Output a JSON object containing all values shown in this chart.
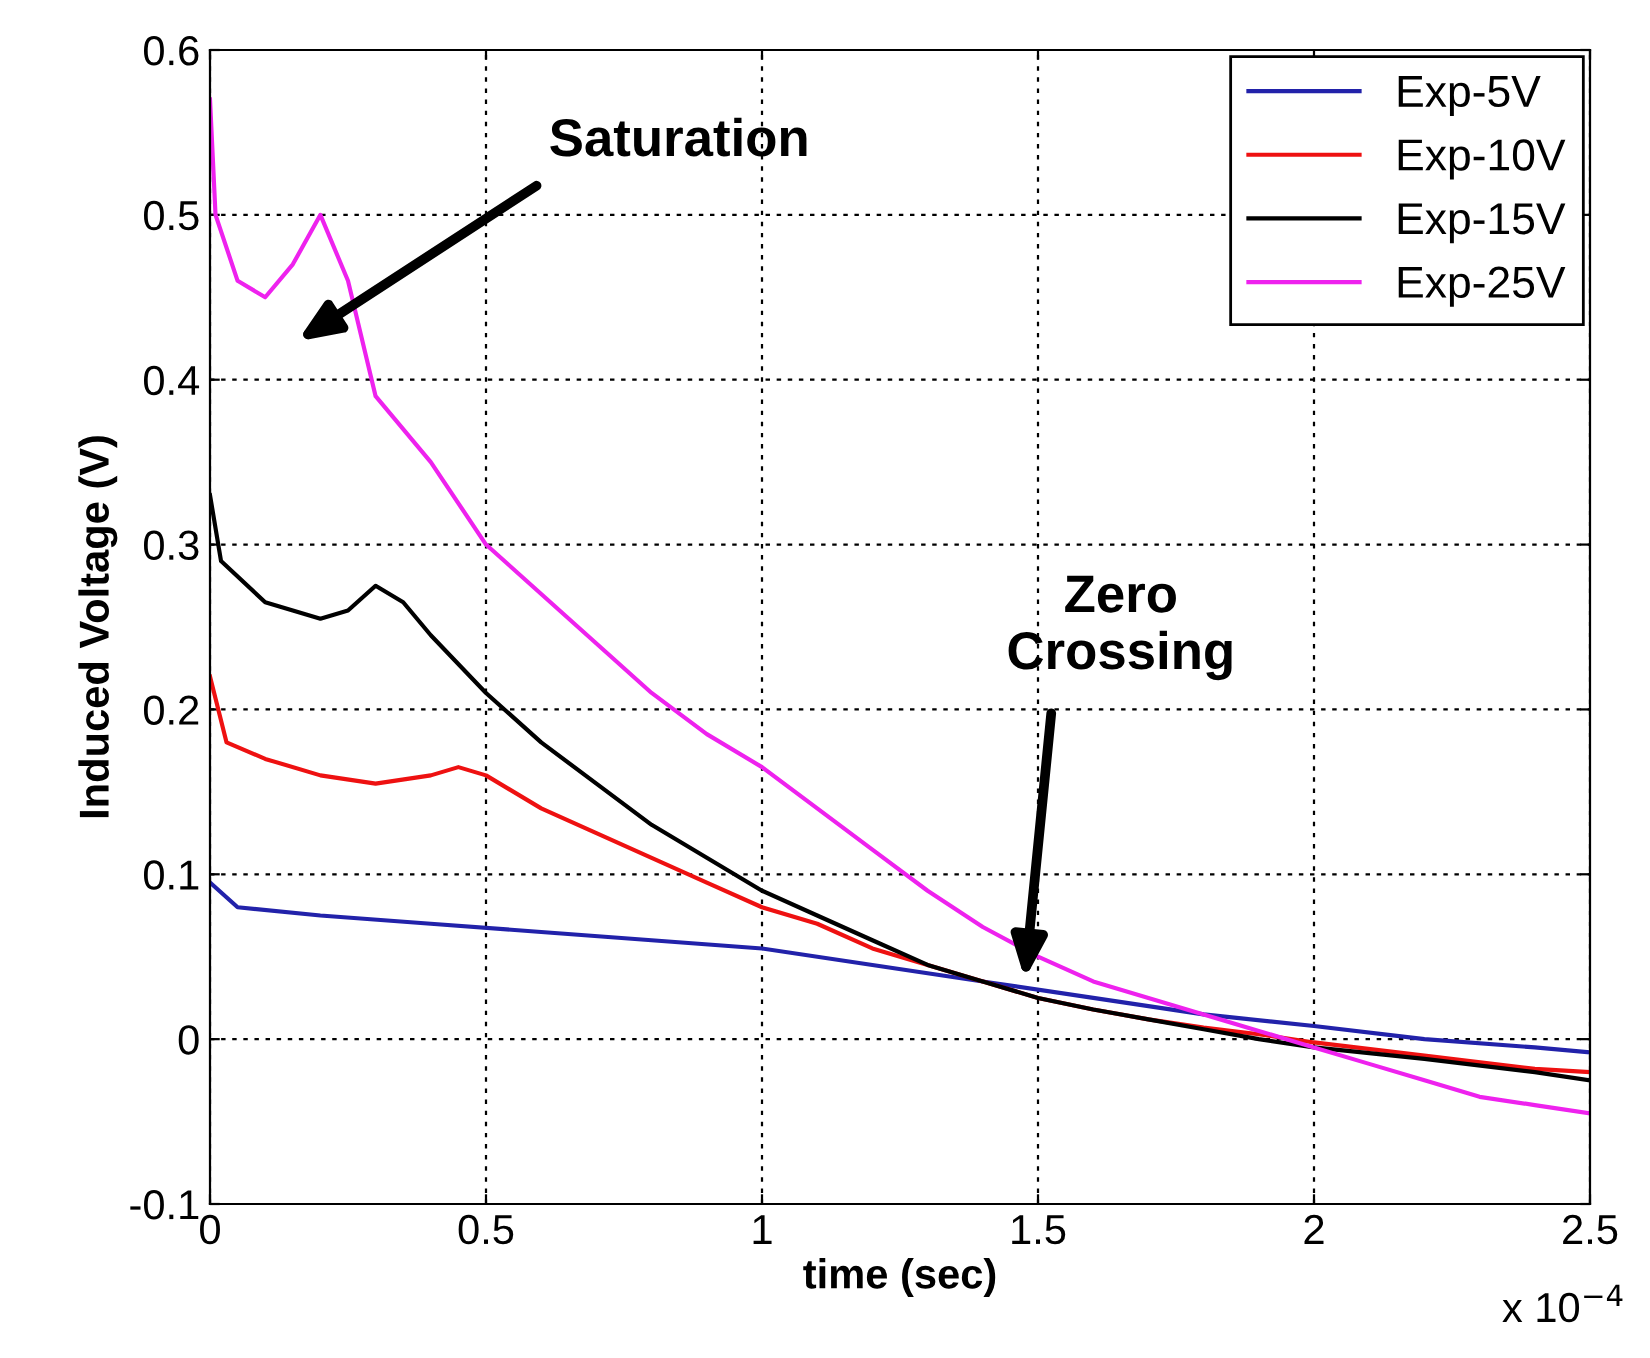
{
  "chart_data": {
    "type": "line",
    "xlabel": "time (sec)",
    "ylabel": "Induced Voltage (V)",
    "xlim": [
      0,
      2.5
    ],
    "ylim": [
      -0.1,
      0.6
    ],
    "xticks": [
      0,
      0.5,
      1,
      1.5,
      2,
      2.5
    ],
    "yticks": [
      -0.1,
      0,
      0.1,
      0.2,
      0.3,
      0.4,
      0.5,
      0.6
    ],
    "grid": true,
    "legend": "top right",
    "line_style": "solid",
    "annotations": [
      "x 10$^{−4}$",
      "Saturation",
      "Zero\nCrossing"
    ],
    "series": [
      {
        "name": "Exp-5V",
        "color": "#2222aa",
        "x": [
          0,
          0.05,
          0.2,
          0.4,
          0.6,
          0.8,
          1.0,
          1.2,
          1.4,
          1.6,
          1.8,
          2.0,
          2.2,
          2.4,
          2.5
        ],
        "values": [
          0.095,
          0.08,
          0.075,
          0.07,
          0.065,
          0.06,
          0.055,
          0.045,
          0.035,
          0.025,
          0.015,
          0.008,
          0.0,
          -0.005,
          -0.008
        ]
      },
      {
        "name": "Exp-10V",
        "color": "#ee1111",
        "x": [
          0,
          0.03,
          0.1,
          0.2,
          0.3,
          0.4,
          0.45,
          0.5,
          0.6,
          0.7,
          0.8,
          0.9,
          1.0,
          1.1,
          1.2,
          1.3,
          1.4,
          1.5,
          1.6,
          1.7,
          1.8,
          1.9,
          2.0,
          2.2,
          2.4,
          2.5
        ],
        "values": [
          0.22,
          0.18,
          0.17,
          0.16,
          0.155,
          0.16,
          0.165,
          0.16,
          0.14,
          0.125,
          0.11,
          0.095,
          0.08,
          0.07,
          0.055,
          0.045,
          0.035,
          0.025,
          0.018,
          0.012,
          0.007,
          0.003,
          -0.002,
          -0.01,
          -0.018,
          -0.02
        ]
      },
      {
        "name": "Exp-15V",
        "color": "#000000",
        "x": [
          0,
          0.02,
          0.1,
          0.2,
          0.25,
          0.3,
          0.35,
          0.4,
          0.5,
          0.6,
          0.7,
          0.8,
          0.9,
          1.0,
          1.1,
          1.2,
          1.3,
          1.4,
          1.5,
          1.6,
          1.7,
          1.8,
          1.9,
          2.0,
          2.2,
          2.4,
          2.5
        ],
        "values": [
          0.33,
          0.29,
          0.265,
          0.255,
          0.26,
          0.275,
          0.265,
          0.245,
          0.21,
          0.18,
          0.155,
          0.13,
          0.11,
          0.09,
          0.075,
          0.06,
          0.045,
          0.035,
          0.025,
          0.018,
          0.012,
          0.006,
          0.0,
          -0.005,
          -0.012,
          -0.02,
          -0.025
        ]
      },
      {
        "name": "Exp-25V",
        "color": "#ee22ee",
        "x": [
          0,
          0.01,
          0.05,
          0.1,
          0.15,
          0.2,
          0.25,
          0.3,
          0.4,
          0.5,
          0.6,
          0.7,
          0.8,
          0.9,
          1.0,
          1.1,
          1.2,
          1.3,
          1.4,
          1.5,
          1.6,
          1.7,
          1.8,
          1.9,
          2.0,
          2.1,
          2.2,
          2.3,
          2.4,
          2.5
        ],
        "values": [
          0.57,
          0.5,
          0.46,
          0.45,
          0.47,
          0.5,
          0.46,
          0.39,
          0.35,
          0.3,
          0.27,
          0.24,
          0.21,
          0.185,
          0.165,
          0.14,
          0.115,
          0.09,
          0.068,
          0.05,
          0.035,
          0.025,
          0.015,
          0.005,
          -0.005,
          -0.015,
          -0.025,
          -0.035,
          -0.04,
          -0.045
        ]
      }
    ]
  }
}
